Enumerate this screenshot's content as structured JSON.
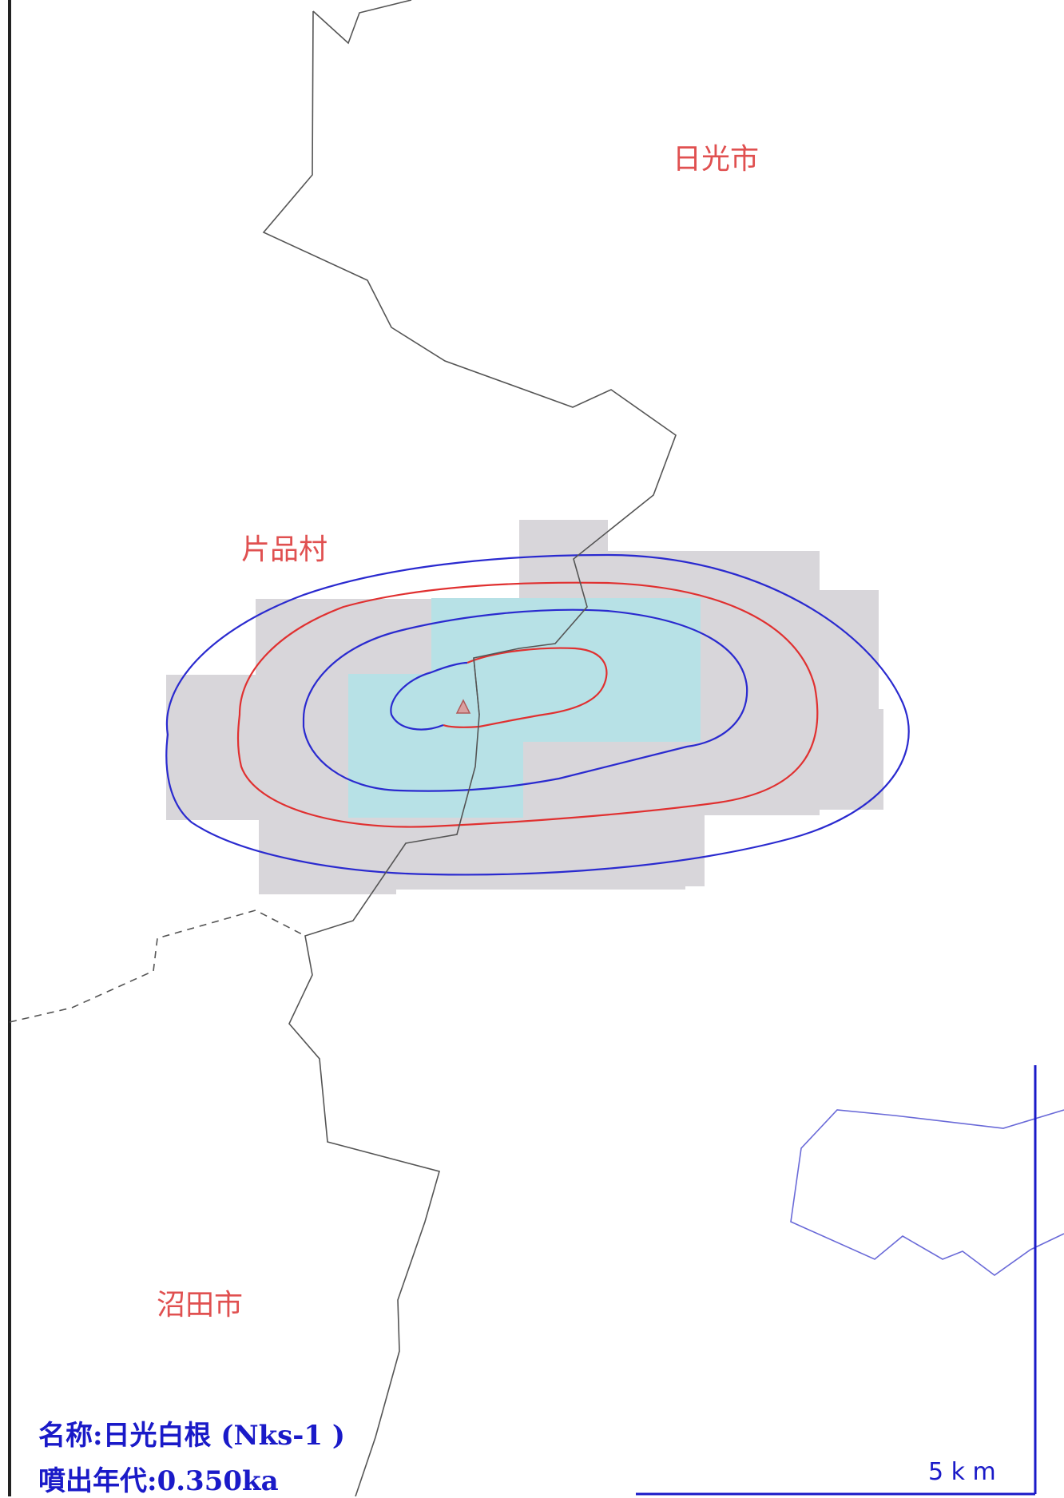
{
  "places": {
    "nikko": "日光市",
    "katashina": "片品村",
    "numata": "沼田市"
  },
  "info": {
    "name_label": "名称",
    "name_value": "日光白根",
    "name_code": "(Nks-1 )",
    "age_label": "噴出年代",
    "age_value": "0.350ka"
  },
  "scale": {
    "label": "5 k m"
  },
  "colors": {
    "boundary": "#555555",
    "contour_blue": "#2a2acf",
    "contour_red": "#e03030",
    "zone_gray": "#d8d6da",
    "zone_cyan": "#b7e1e6",
    "place_text": "#e05050",
    "scale_blue": "#1a1ac8"
  }
}
